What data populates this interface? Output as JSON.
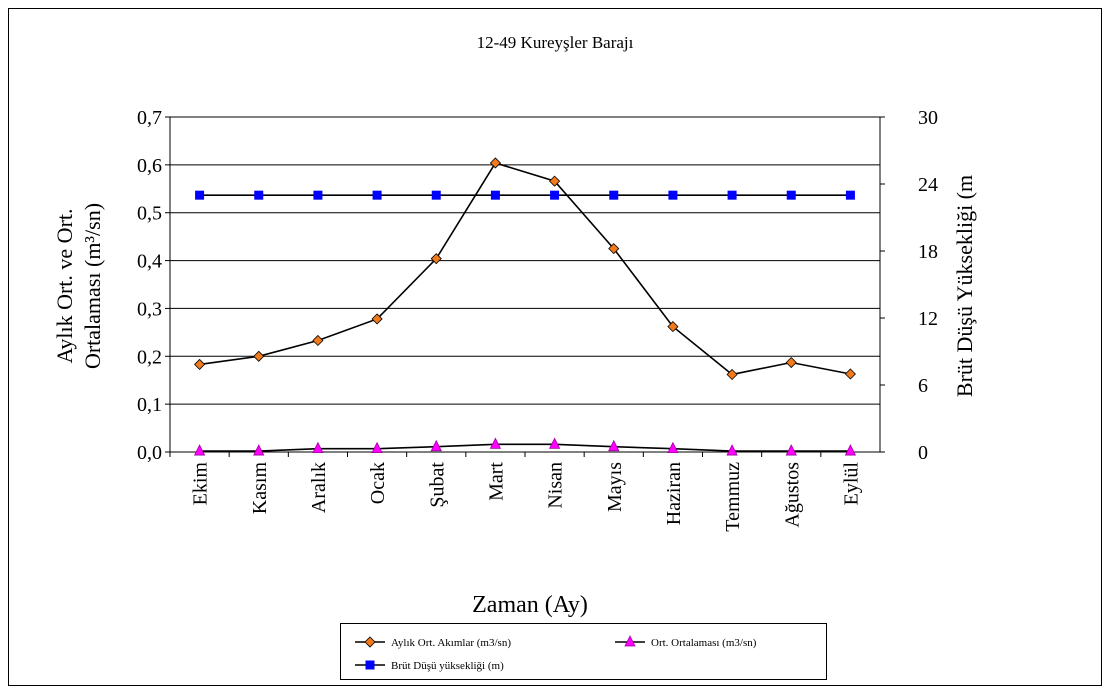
{
  "chart_data": {
    "type": "line",
    "title": "12-49 Kureyşler Barajı",
    "x_label": "Zaman (Ay)",
    "y_label": [
      "Aylık Ort. ve Ort.",
      "Ortalaması (m³/sn)"
    ],
    "y2_label": "Brüt Düşü Yüksekliği (m",
    "categories": [
      "Ekim",
      "Kasım",
      "Aralık",
      "Ocak",
      "Şubat",
      "Mart",
      "Nisan",
      "Mayıs",
      "Haziran",
      "Temmuz",
      "Ağustos",
      "Eylül"
    ],
    "ylim": [
      0,
      0.7
    ],
    "yticks": [
      {
        "value": 0,
        "label": "0,0"
      },
      {
        "value": 0.1,
        "label": "0,1"
      },
      {
        "value": 0.2,
        "label": "0,2"
      },
      {
        "value": 0.3,
        "label": "0,3"
      },
      {
        "value": 0.4,
        "label": "0,4"
      },
      {
        "value": 0.5,
        "label": "0,5"
      },
      {
        "value": 0.6,
        "label": "0,6"
      },
      {
        "value": 0.7,
        "label": "0,7"
      }
    ],
    "y2lim": [
      0,
      30
    ],
    "y2ticks": [
      0,
      6,
      12,
      18,
      24,
      30
    ],
    "grid": true,
    "line_color": "#000000",
    "series": [
      {
        "name": "Aylık Ort. Akımlar (m3/sn)",
        "marker": "diamond",
        "color": "#f07a1c",
        "values": [
          0.183,
          0.2,
          0.233,
          0.278,
          0.404,
          0.604,
          0.566,
          0.425,
          0.262,
          0.162,
          0.187,
          0.163
        ]
      },
      {
        "name": "Ort. Ortalaması (m3/sn)",
        "marker": "triangle",
        "color": "#ff00ff",
        "values": [
          0.002,
          0.002,
          0.007,
          0.007,
          0.011,
          0.016,
          0.016,
          0.011,
          0.007,
          0.002,
          0.002,
          0.002
        ]
      },
      {
        "name": "Brüt Düşü yüksekliği (m)",
        "marker": "square",
        "color": "#0000ff",
        "axis": "y2",
        "values": [
          23,
          23,
          23,
          23,
          23,
          23,
          23,
          23,
          23,
          23,
          23,
          23
        ]
      }
    ]
  }
}
